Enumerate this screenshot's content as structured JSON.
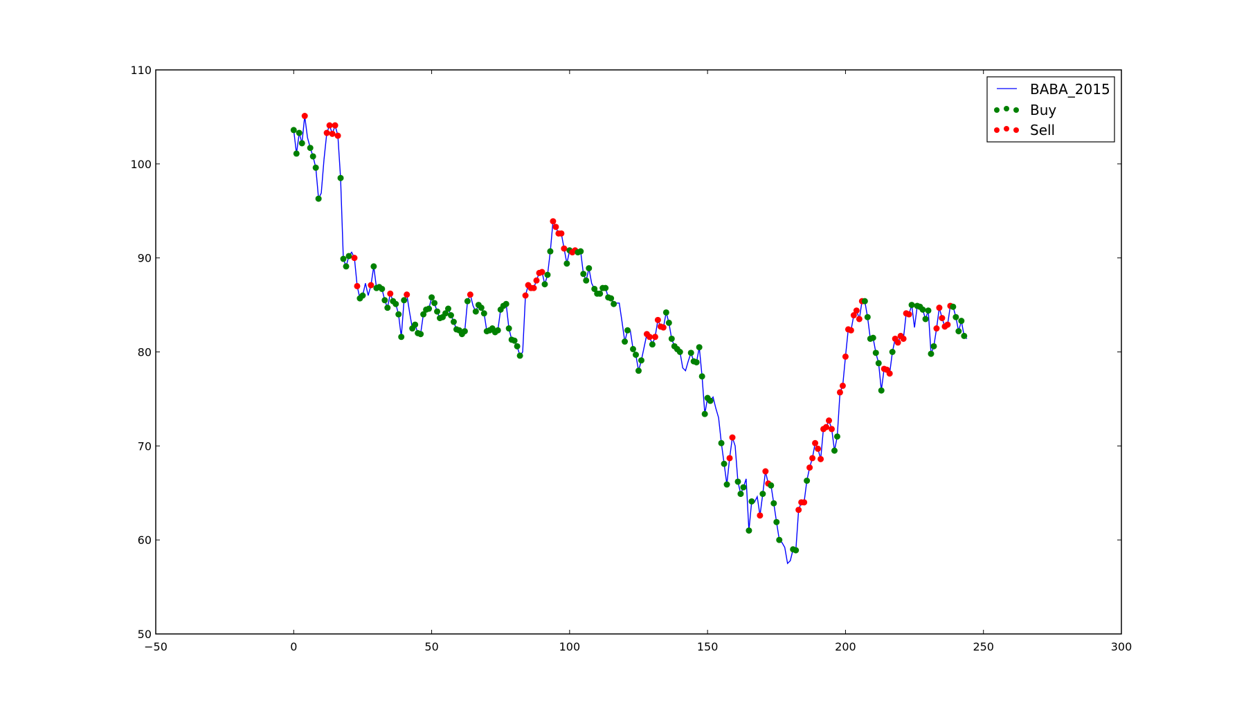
{
  "chart_data": {
    "type": "line",
    "title": "",
    "xlabel": "",
    "ylabel": "",
    "xlim": [
      -50,
      300
    ],
    "ylim": [
      50,
      110
    ],
    "xticks": [
      -50,
      0,
      50,
      100,
      150,
      200,
      250,
      300
    ],
    "yticks": [
      50,
      60,
      70,
      80,
      90,
      100,
      110
    ],
    "xtick_labels": [
      "−50",
      "0",
      "50",
      "100",
      "150",
      "200",
      "250",
      "300"
    ],
    "ytick_labels": [
      "50",
      "60",
      "70",
      "80",
      "90",
      "100",
      "110"
    ],
    "grid": false,
    "legend_position": "top-right",
    "series": [
      {
        "name": "BABA_2015",
        "kind": "line",
        "color": "#0000ff"
      },
      {
        "name": "Buy",
        "kind": "scatter",
        "color": "#008000"
      },
      {
        "name": "Sell",
        "kind": "scatter",
        "color": "#ff0000"
      }
    ],
    "values": [
      103.6,
      101.1,
      103.3,
      102.2,
      105.1,
      102.8,
      101.7,
      100.8,
      99.6,
      96.3,
      96.9,
      100.5,
      103.3,
      104.1,
      103.2,
      104.1,
      103.0,
      98.5,
      89.9,
      89.1,
      90.2,
      90.6,
      90.0,
      87.0,
      85.7,
      86.0,
      87.3,
      86.0,
      87.1,
      89.1,
      86.8,
      86.9,
      86.7,
      85.5,
      84.7,
      86.2,
      85.4,
      85.1,
      84.0,
      81.6,
      85.5,
      86.1,
      84.2,
      82.5,
      82.9,
      82.0,
      81.9,
      84.0,
      84.5,
      84.6,
      85.8,
      85.2,
      84.3,
      83.6,
      83.7,
      84.1,
      84.6,
      83.9,
      83.2,
      82.4,
      82.3,
      81.9,
      82.2,
      85.4,
      86.1,
      84.9,
      84.3,
      85.0,
      84.7,
      84.1,
      82.2,
      82.3,
      82.5,
      82.1,
      82.3,
      84.5,
      84.9,
      85.1,
      82.5,
      81.3,
      81.2,
      80.6,
      79.6,
      80.0,
      86.0,
      87.1,
      86.8,
      86.8,
      87.6,
      88.4,
      88.5,
      87.2,
      88.2,
      90.7,
      93.9,
      93.3,
      92.6,
      92.6,
      91.0,
      89.4,
      90.8,
      90.6,
      90.8,
      90.6,
      90.7,
      88.3,
      87.6,
      88.9,
      87.3,
      86.7,
      86.2,
      86.2,
      86.8,
      86.8,
      85.8,
      85.7,
      85.1,
      85.2,
      85.2,
      83.2,
      81.1,
      82.3,
      82.3,
      80.3,
      79.7,
      78.0,
      79.1,
      80.5,
      81.9,
      81.6,
      80.8,
      81.6,
      83.4,
      82.7,
      82.6,
      84.2,
      83.1,
      81.4,
      80.6,
      80.3,
      80.0,
      78.3,
      78.0,
      79.0,
      79.9,
      79.0,
      78.9,
      80.5,
      77.4,
      73.4,
      75.1,
      74.8,
      75.2,
      74.0,
      73.0,
      70.3,
      68.1,
      65.9,
      68.7,
      70.9,
      70.0,
      66.2,
      64.9,
      65.6,
      66.5,
      61.0,
      64.1,
      64.0,
      64.6,
      62.6,
      64.9,
      67.3,
      66.0,
      65.8,
      63.9,
      61.9,
      60.0,
      59.7,
      59.2,
      57.5,
      57.8,
      59.0,
      58.9,
      63.2,
      64.0,
      64.0,
      66.3,
      67.7,
      68.7,
      70.3,
      69.7,
      68.6,
      71.8,
      72.0,
      72.7,
      71.8,
      69.5,
      71.0,
      75.7,
      76.4,
      79.5,
      82.4,
      82.3,
      83.9,
      84.4,
      83.5,
      85.4,
      85.4,
      83.7,
      81.4,
      81.5,
      79.9,
      78.8,
      75.9,
      78.2,
      78.1,
      77.7,
      80.0,
      81.4,
      81.0,
      81.7,
      81.4,
      84.1,
      84.0,
      85.0,
      82.6,
      84.9,
      84.8,
      84.5,
      83.5,
      84.4,
      79.8,
      80.6,
      82.5,
      84.7,
      83.6,
      82.7,
      82.9,
      84.9,
      84.8,
      83.7,
      82.2,
      83.3,
      81.7,
      81.4
    ],
    "signals": [
      "B",
      "B",
      "B",
      "B",
      "S",
      "",
      "B",
      "B",
      "B",
      "B",
      "",
      "",
      "S",
      "S",
      "S",
      "S",
      "S",
      "B",
      "B",
      "B",
      "B",
      "",
      "S",
      "S",
      "B",
      "B",
      "",
      "",
      "S",
      "B",
      "B",
      "B",
      "B",
      "B",
      "B",
      "S",
      "B",
      "B",
      "B",
      "B",
      "B",
      "S",
      "",
      "B",
      "B",
      "B",
      "B",
      "B",
      "B",
      "B",
      "B",
      "B",
      "B",
      "B",
      "B",
      "B",
      "B",
      "B",
      "B",
      "B",
      "B",
      "B",
      "B",
      "B",
      "S",
      "",
      "B",
      "B",
      "B",
      "B",
      "B",
      "B",
      "B",
      "B",
      "B",
      "B",
      "B",
      "B",
      "B",
      "B",
      "B",
      "B",
      "B",
      "",
      "S",
      "S",
      "S",
      "S",
      "S",
      "S",
      "S",
      "B",
      "B",
      "B",
      "S",
      "S",
      "S",
      "S",
      "S",
      "B",
      "B",
      "S",
      "S",
      "B",
      "B",
      "B",
      "B",
      "B",
      "",
      "B",
      "B",
      "B",
      "B",
      "B",
      "B",
      "B",
      "B",
      "",
      "",
      "",
      "B",
      "B",
      "",
      "B",
      "B",
      "B",
      "B",
      "",
      "S",
      "S",
      "B",
      "S",
      "S",
      "S",
      "S",
      "B",
      "B",
      "B",
      "B",
      "B",
      "B",
      "",
      "",
      "",
      "B",
      "B",
      "B",
      "B",
      "B",
      "B",
      "B",
      "B",
      "",
      "",
      "",
      "B",
      "B",
      "B",
      "S",
      "S",
      "",
      "B",
      "B",
      "B",
      "",
      "B",
      "B",
      "",
      "",
      "S",
      "B",
      "S",
      "S",
      "B",
      "B",
      "B",
      "B",
      "",
      "",
      "",
      "",
      "B",
      "B",
      "S",
      "S",
      "S",
      "B",
      "S",
      "S",
      "S",
      "S",
      "S",
      "S",
      "S",
      "S",
      "S",
      "B",
      "B",
      "S",
      "S",
      "S",
      "S",
      "S",
      "S",
      "S",
      "S",
      "S",
      "B",
      "B",
      "B",
      "B",
      "B",
      "B",
      "B",
      "S",
      "S",
      "S",
      "B",
      "S",
      "S",
      "S",
      "S",
      "S",
      "S",
      "B",
      "",
      "B",
      "B",
      "B",
      "B",
      "B",
      "B",
      "B",
      "S",
      "S",
      "S",
      "S",
      "S",
      "S",
      "B",
      "B",
      "B",
      "B",
      "B",
      ""
    ]
  }
}
